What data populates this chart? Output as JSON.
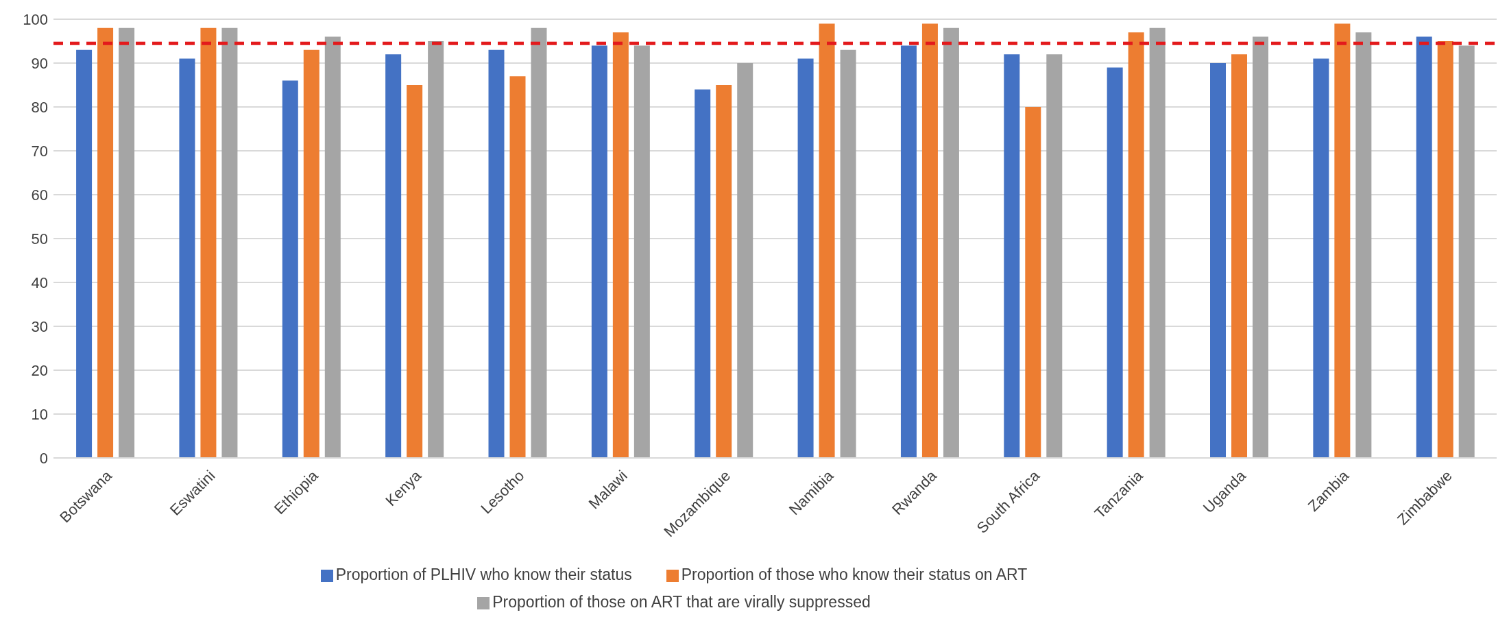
{
  "chart_data": {
    "type": "bar",
    "categories": [
      "Botswana",
      "Eswatini",
      "Ethiopia",
      "Kenya",
      "Lesotho",
      "Malawi",
      "Mozambique",
      "Namibia",
      "Rwanda",
      "South Africa",
      "Tanzania",
      "Uganda",
      "Zambia",
      "Zimbabwe"
    ],
    "series": [
      {
        "name": "Proportion of PLHIV who know their status",
        "color": "#4472c4",
        "values": [
          93,
          91,
          86,
          92,
          93,
          94,
          84,
          91,
          94,
          92,
          89,
          90,
          91,
          96
        ]
      },
      {
        "name": "Proportion of those who know their status on ART",
        "color": "#ed7d31",
        "values": [
          98,
          98,
          93,
          85,
          87,
          97,
          85,
          99,
          99,
          80,
          97,
          92,
          99,
          95
        ]
      },
      {
        "name": "Proportion of those on ART that are virally suppressed",
        "color": "#a5a5a5",
        "values": [
          98,
          98,
          96,
          95,
          98,
          94,
          90,
          93,
          98,
          92,
          98,
          96,
          97,
          94
        ]
      }
    ],
    "ylim": [
      0,
      100
    ],
    "yticks": [
      0,
      10,
      20,
      30,
      40,
      50,
      60,
      70,
      80,
      90,
      100
    ],
    "grid": "y",
    "legend": "bottom",
    "ref_lines": [
      {
        "axis": "y",
        "value": 94.5,
        "color": "#e31a1c",
        "line_style": "dashed"
      }
    ]
  }
}
